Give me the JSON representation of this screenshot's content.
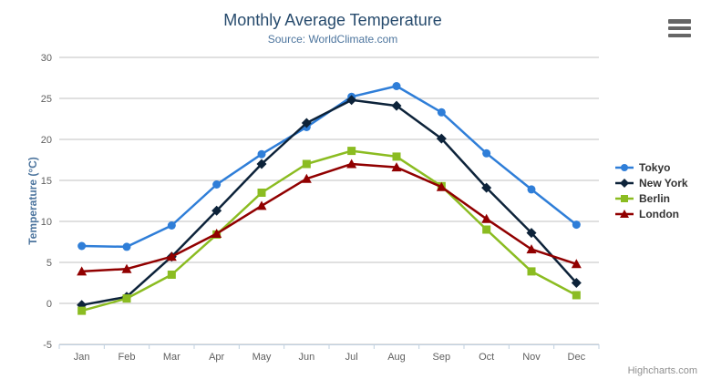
{
  "chart": {
    "title": "Monthly Average Temperature",
    "subtitle": "Source: WorldClimate.com",
    "credit": "Highcharts.com"
  },
  "chart_data": {
    "type": "line",
    "title": "Monthly Average Temperature",
    "subtitle": "Source: WorldClimate.com",
    "categories": [
      "Jan",
      "Feb",
      "Mar",
      "Apr",
      "May",
      "Jun",
      "Jul",
      "Aug",
      "Sep",
      "Oct",
      "Nov",
      "Dec"
    ],
    "xlabel": "",
    "ylabel": "Temperature (°C)",
    "ylim": [
      -5,
      30
    ],
    "ytick_step": 5,
    "yticks": [
      -5,
      0,
      5,
      10,
      15,
      20,
      25,
      30
    ],
    "grid": true,
    "legend_position": "right",
    "colors": {
      "title": "#274B6D",
      "subtitle": "#4D759E",
      "grid": "#C0C0C0",
      "axis_line": "#C0D0E0",
      "tick_label": "#606060",
      "axis_title": "#4D759E",
      "legend_text": "#333333",
      "credit": "#909090",
      "menu_icon": "#666666"
    },
    "series": [
      {
        "name": "Tokyo",
        "color": "#2F7ED8",
        "marker": "circle",
        "values": [
          7.0,
          6.9,
          9.5,
          14.5,
          18.2,
          21.5,
          25.2,
          26.5,
          23.3,
          18.3,
          13.9,
          9.6
        ]
      },
      {
        "name": "New York",
        "color": "#0D233A",
        "marker": "diamond",
        "values": [
          -0.2,
          0.8,
          5.7,
          11.3,
          17.0,
          22.0,
          24.8,
          24.1,
          20.1,
          14.1,
          8.6,
          2.5
        ]
      },
      {
        "name": "Berlin",
        "color": "#8BBC21",
        "marker": "square",
        "values": [
          -0.9,
          0.6,
          3.5,
          8.4,
          13.5,
          17.0,
          18.6,
          17.9,
          14.3,
          9.0,
          3.9,
          1.0
        ]
      },
      {
        "name": "London",
        "color": "#910000",
        "marker": "triangle",
        "values": [
          3.9,
          4.2,
          5.7,
          8.5,
          11.9,
          15.2,
          17.0,
          16.6,
          14.2,
          10.3,
          6.6,
          4.8
        ]
      }
    ]
  }
}
